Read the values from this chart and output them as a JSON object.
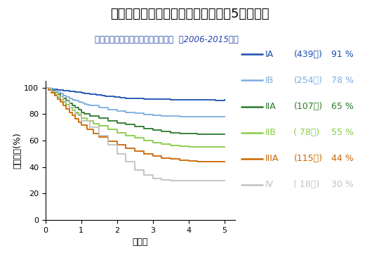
{
  "title": "肺癌切除例の病理病期別生存曲線と5年生存率",
  "subtitle": "北九州市立医療センター呼吸器外科  （2006-2015年）",
  "xlabel": "術後年",
  "ylabel": "生存率　(%)",
  "xlim": [
    0,
    5.3
  ],
  "ylim": [
    0,
    105
  ],
  "yticks": [
    0,
    20,
    40,
    60,
    80,
    100
  ],
  "xticks": [
    0,
    1,
    2,
    3,
    4,
    5
  ],
  "series": [
    {
      "label": "IA",
      "n": 439,
      "survival_5yr": 91,
      "color": "#1a4faf",
      "steps_x": [
        0,
        0.08,
        0.12,
        0.18,
        0.25,
        0.33,
        0.42,
        0.5,
        0.58,
        0.67,
        0.75,
        0.83,
        0.92,
        1.0,
        1.08,
        1.17,
        1.25,
        1.33,
        1.42,
        1.5,
        1.58,
        1.67,
        1.75,
        1.83,
        1.92,
        2.0,
        2.08,
        2.17,
        2.25,
        2.5,
        2.75,
        3.0,
        3.25,
        3.5,
        3.75,
        4.0,
        4.25,
        4.5,
        4.75,
        5.0
      ],
      "steps_y": [
        100,
        99.5,
        99.3,
        99.0,
        98.7,
        98.4,
        98.1,
        97.8,
        97.5,
        97.2,
        97.0,
        96.7,
        96.4,
        96.1,
        95.8,
        95.5,
        95.2,
        94.9,
        94.6,
        94.3,
        94.0,
        93.7,
        93.5,
        93.2,
        92.9,
        92.7,
        92.5,
        92.3,
        92.1,
        91.8,
        91.5,
        91.3,
        91.1,
        91.0,
        90.9,
        90.8,
        90.7,
        90.6,
        90.5,
        91.0
      ]
    },
    {
      "label": "IB",
      "n": 254,
      "survival_5yr": 78,
      "color": "#7aaddf",
      "steps_x": [
        0,
        0.08,
        0.15,
        0.25,
        0.33,
        0.42,
        0.5,
        0.58,
        0.67,
        0.75,
        0.83,
        0.92,
        1.0,
        1.08,
        1.17,
        1.25,
        1.5,
        1.75,
        2.0,
        2.25,
        2.5,
        2.75,
        3.0,
        3.25,
        3.5,
        3.75,
        4.0,
        4.25,
        4.5,
        4.75,
        5.0
      ],
      "steps_y": [
        100,
        99.2,
        98.4,
        97.5,
        96.5,
        95.3,
        94.2,
        93.0,
        92.0,
        91.0,
        90.0,
        89.2,
        88.5,
        87.8,
        87.0,
        86.3,
        85.0,
        83.5,
        82.3,
        81.3,
        80.5,
        79.8,
        79.3,
        78.8,
        78.5,
        78.2,
        78.0,
        78.0,
        78.0,
        78.0,
        78.0
      ]
    },
    {
      "label": "IIA",
      "n": 107,
      "survival_5yr": 65,
      "color": "#2a7a2a",
      "steps_x": [
        0,
        0.08,
        0.17,
        0.25,
        0.33,
        0.42,
        0.5,
        0.58,
        0.67,
        0.75,
        0.83,
        0.92,
        1.0,
        1.08,
        1.25,
        1.5,
        1.75,
        2.0,
        2.25,
        2.5,
        2.75,
        3.0,
        3.25,
        3.5,
        3.75,
        4.0,
        4.25,
        4.5,
        4.75,
        5.0
      ],
      "steps_y": [
        100,
        99.0,
        97.5,
        96.5,
        95.0,
        93.5,
        91.8,
        90.0,
        88.2,
        86.5,
        84.8,
        83.2,
        81.5,
        80.0,
        78.5,
        77.0,
        75.0,
        73.5,
        72.0,
        70.5,
        69.0,
        67.8,
        66.8,
        66.0,
        65.5,
        65.2,
        65.0,
        65.0,
        65.0,
        65.0
      ]
    },
    {
      "label": "IIB",
      "n": 78,
      "survival_5yr": 55,
      "color": "#88cc44",
      "steps_x": [
        0,
        0.08,
        0.17,
        0.25,
        0.33,
        0.42,
        0.5,
        0.58,
        0.67,
        0.75,
        0.83,
        0.92,
        1.0,
        1.17,
        1.33,
        1.5,
        1.75,
        2.0,
        2.25,
        2.5,
        2.75,
        3.0,
        3.25,
        3.5,
        3.75,
        4.0,
        4.25,
        4.5,
        4.75,
        5.0
      ],
      "steps_y": [
        100,
        98.5,
        96.8,
        95.0,
        93.0,
        91.0,
        89.0,
        87.0,
        85.0,
        83.0,
        81.0,
        79.0,
        77.0,
        75.0,
        73.0,
        71.0,
        68.5,
        66.0,
        64.0,
        62.0,
        60.0,
        58.5,
        57.5,
        56.5,
        56.0,
        55.5,
        55.2,
        55.0,
        55.0,
        55.0
      ]
    },
    {
      "label": "IIIA",
      "n": 115,
      "survival_5yr": 44,
      "color": "#cc6600",
      "steps_x": [
        0,
        0.08,
        0.17,
        0.25,
        0.33,
        0.42,
        0.5,
        0.58,
        0.67,
        0.75,
        0.83,
        0.92,
        1.0,
        1.17,
        1.33,
        1.5,
        1.75,
        2.0,
        2.25,
        2.5,
        2.75,
        3.0,
        3.25,
        3.5,
        3.75,
        4.0,
        4.25,
        4.5,
        4.75,
        5.0
      ],
      "steps_y": [
        100,
        98.0,
        96.0,
        93.8,
        91.5,
        89.0,
        86.5,
        84.0,
        81.5,
        79.0,
        76.5,
        74.0,
        71.5,
        68.5,
        65.5,
        62.5,
        59.5,
        56.8,
        54.3,
        52.0,
        50.0,
        48.3,
        47.0,
        46.0,
        45.3,
        44.8,
        44.3,
        44.0,
        44.0,
        44.0
      ]
    },
    {
      "label": "IV",
      "n": 18,
      "survival_5yr": 30,
      "color": "#c0c0c0",
      "steps_x": [
        0,
        0.17,
        0.33,
        0.5,
        0.67,
        0.83,
        1.0,
        1.25,
        1.5,
        1.75,
        2.0,
        2.25,
        2.5,
        2.75,
        3.0,
        3.25,
        3.5,
        4.0,
        5.0
      ],
      "steps_y": [
        100,
        97.0,
        93.5,
        89.5,
        85.0,
        80.0,
        75.0,
        70.0,
        63.5,
        57.0,
        50.0,
        44.0,
        38.0,
        34.0,
        31.5,
        30.5,
        30.0,
        30.0,
        30.0
      ]
    }
  ],
  "legend_entries": [
    {
      "stage": "IA",
      "n_str": "439",
      "pct": "91",
      "color": "#1a4faf"
    },
    {
      "stage": "IB",
      "n_str": "254",
      "pct": "78",
      "color": "#7aaddf"
    },
    {
      "stage": "IIA",
      "n_str": "107",
      "pct": "65",
      "color": "#2a7a2a"
    },
    {
      "stage": "IIB",
      "n_str": " 78",
      "pct": "55",
      "color": "#88cc44"
    },
    {
      "stage": "IIIA",
      "n_str": "115",
      "pct": "44",
      "color": "#cc6600"
    },
    {
      "stage": "IV",
      "n_str": " 18",
      "pct": "30",
      "color": "#c0c0c0"
    }
  ],
  "background_color": "#ffffff",
  "title_color": "#000000",
  "subtitle_color": "#2244aa",
  "title_fontsize": 13,
  "subtitle_fontsize": 8.5,
  "axis_fontsize": 8,
  "legend_fontsize": 9,
  "tick_fontsize": 8
}
